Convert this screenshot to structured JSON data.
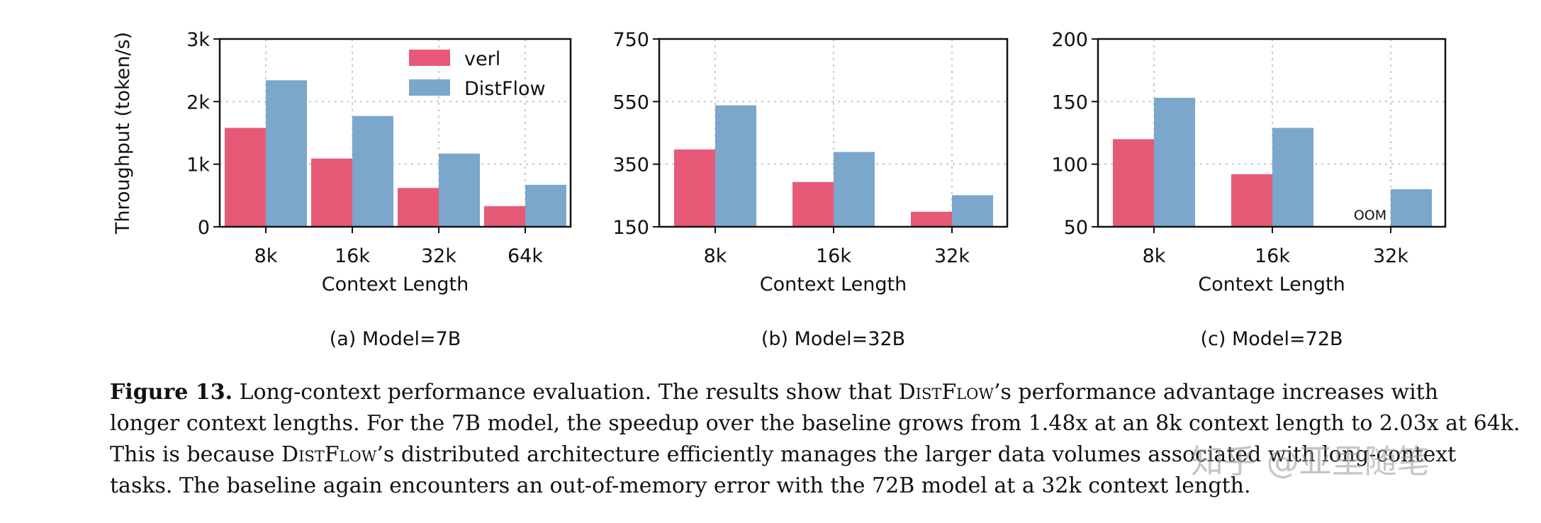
{
  "chart_data": [
    {
      "type": "bar",
      "categories": [
        "8k",
        "16k",
        "32k",
        "64k"
      ],
      "series": [
        {
          "name": "verl",
          "values": [
            1580,
            1090,
            620,
            330
          ]
        },
        {
          "name": "DistFlow",
          "values": [
            2340,
            1770,
            1170,
            670
          ]
        }
      ],
      "xlabel": "Context Length",
      "ylabel": "Throughput (token/s)",
      "ylim": [
        0,
        3000
      ],
      "yticks": [
        0,
        1000,
        2000,
        3000
      ],
      "yticklabels": [
        "0",
        "1k",
        "2k",
        "3k"
      ],
      "grid": true,
      "legend": "top-right",
      "subtitle": "(a) Model=7B",
      "annotations": []
    },
    {
      "type": "bar",
      "categories": [
        "8k",
        "16k",
        "32k"
      ],
      "series": [
        {
          "name": "verl",
          "values": [
            397,
            293,
            198
          ]
        },
        {
          "name": "DistFlow",
          "values": [
            538,
            389,
            251
          ]
        }
      ],
      "xlabel": "Context Length",
      "ylabel": "",
      "ylim": [
        150,
        750
      ],
      "yticks": [
        150,
        350,
        550,
        750
      ],
      "yticklabels": [
        "150",
        "350",
        "550",
        "750"
      ],
      "grid": true,
      "subtitle": "(b) Model=32B",
      "annotations": []
    },
    {
      "type": "bar",
      "categories": [
        "8k",
        "16k",
        "32k"
      ],
      "series": [
        {
          "name": "verl",
          "values": [
            120,
            92,
            null
          ]
        },
        {
          "name": "DistFlow",
          "values": [
            153,
            129,
            80
          ]
        }
      ],
      "xlabel": "Context Length",
      "ylabel": "",
      "ylim": [
        50,
        200
      ],
      "yticks": [
        50,
        100,
        150,
        200
      ],
      "yticklabels": [
        "50",
        "100",
        "150",
        "200"
      ],
      "grid": true,
      "subtitle": "(c) Model=72B",
      "annotations": [
        {
          "category": "32k",
          "series": "verl",
          "text": "OOM"
        }
      ]
    }
  ],
  "colors": {
    "verl": "#e75a77",
    "DistFlow": "#7ba7cc"
  },
  "caption": {
    "label": "Figure 13.",
    "line1": "Long-context performance evaluation. The results show that ",
    "name": "DistFlow",
    "line1_end": "’s performance advantage increases with",
    "line2": "longer context lengths. For the 7B model, the speedup over the baseline grows from 1.48x at an 8k context length to 2.03x at 64k.",
    "line3_start": "This is because ",
    "line3_end": "’s distributed architecture efficiently manages the larger data volumes associated with long-context",
    "line4": "tasks. The baseline again encounters an out-of-memory error with the 72B model at a 32k context length."
  },
  "watermark": "知乎 @亚里随笔"
}
